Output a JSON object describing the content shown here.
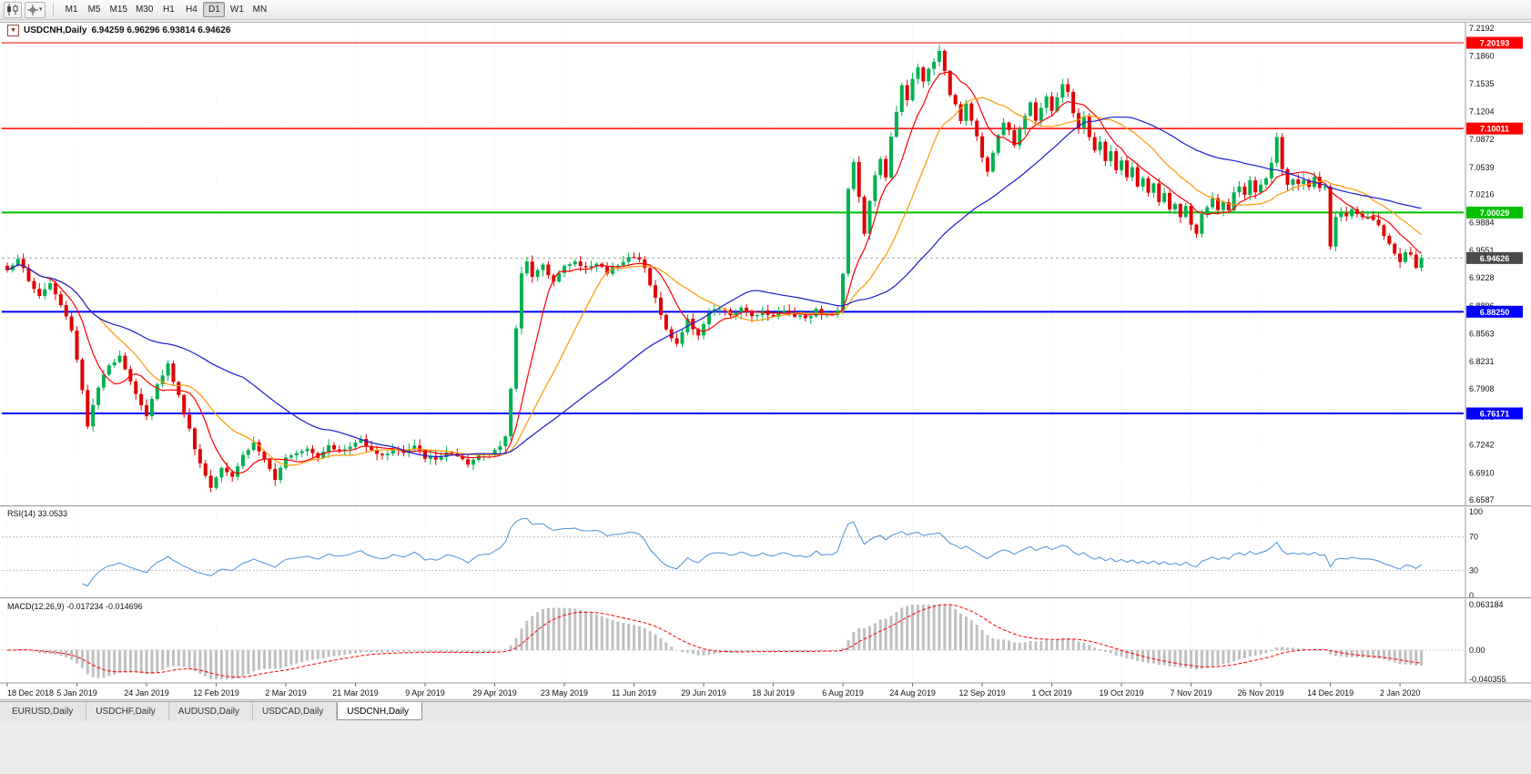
{
  "colors": {
    "window_bg": "#ececec",
    "chart_bg": "#ffffff",
    "grid": "#ededed",
    "candle_up": "#00b050",
    "candle_down": "#e00000",
    "current_line": "#aaaaaa",
    "current_tag": "#4a4a4a"
  },
  "toolbar": {
    "timeframes": [
      "M1",
      "M5",
      "M15",
      "M30",
      "H1",
      "H4",
      "D1",
      "W1",
      "MN"
    ],
    "active_timeframe": "D1",
    "icons": [
      "candlestick-chart-icon",
      "crosshair-icon",
      "dropdown-caret-icon"
    ]
  },
  "chart_header": {
    "symbol": "USDCNH,Daily",
    "ohlc": "6.94259 6.96296 6.93814 6.94626",
    "open": "6.94259",
    "high": "6.96296",
    "low": "6.93814",
    "close": "6.94626"
  },
  "tabs": {
    "items": [
      "EURUSD,Daily",
      "USDCHF,Daily",
      "AUDUSD,Daily",
      "USDCAD,Daily",
      "USDCNH,Daily"
    ],
    "active_index": 4
  },
  "chart_data": {
    "type": "candlestick",
    "symbol": "USDCNH",
    "timeframe": "Daily",
    "price_axis": {
      "labels": [
        "7.2192",
        "7.1860",
        "7.1535",
        "7.1204",
        "7.0872",
        "7.0539",
        "7.0216",
        "6.9884",
        "6.9551",
        "6.9228",
        "6.8896",
        "6.8563",
        "6.8231",
        "6.7908",
        "6.7575",
        "6.7242",
        "6.6910",
        "6.6587"
      ],
      "min": 6.66003,
      "max": 7.22032
    },
    "x_labels": [
      "18 Dec 2018",
      "5 Jan 2019",
      "24 Jan 2019",
      "12 Feb 2019",
      "2 Mar 2019",
      "21 Mar 2019",
      "9 Apr 2019",
      "29 Apr 2019",
      "23 May 2019",
      "11 Jun 2019",
      "29 Jun 2019",
      "18 Jul 2019",
      "6 Aug 2019",
      "24 Aug 2019",
      "12 Sep 2019",
      "1 Oct 2019",
      "19 Oct 2019",
      "7 Nov 2019",
      "26 Nov 2019",
      "14 Dec 2019",
      "2 Jan 2020"
    ],
    "hlines": [
      {
        "price": 7.20193,
        "label": "7.20193",
        "color": "#ff0000",
        "width": 1
      },
      {
        "price": 7.10011,
        "label": "7.10011",
        "color": "#ff0000",
        "width": 1.5
      },
      {
        "price": 7.00029,
        "label": "7.00029",
        "color": "#00c000",
        "width": 2
      },
      {
        "price": 6.8825,
        "label": "6.88250",
        "color": "#0000ff",
        "width": 2
      },
      {
        "price": 6.76171,
        "label": "6.76171",
        "color": "#0000ff",
        "width": 2
      }
    ],
    "current_price": {
      "value": 6.94626,
      "label": "6.94626"
    },
    "price_anchors": [
      [
        0,
        6.932
      ],
      [
        2,
        6.947
      ],
      [
        4,
        6.918
      ],
      [
        6,
        6.902
      ],
      [
        8,
        6.916
      ],
      [
        10,
        6.89
      ],
      [
        12,
        6.862
      ],
      [
        14,
        6.79
      ],
      [
        15,
        6.748
      ],
      [
        17,
        6.792
      ],
      [
        19,
        6.818
      ],
      [
        21,
        6.832
      ],
      [
        23,
        6.8
      ],
      [
        25,
        6.772
      ],
      [
        26,
        6.757
      ],
      [
        28,
        6.798
      ],
      [
        30,
        6.82
      ],
      [
        32,
        6.782
      ],
      [
        34,
        6.742
      ],
      [
        36,
        6.702
      ],
      [
        38,
        6.674
      ],
      [
        40,
        6.7
      ],
      [
        42,
        6.688
      ],
      [
        44,
        6.712
      ],
      [
        46,
        6.727
      ],
      [
        48,
        6.707
      ],
      [
        50,
        6.68
      ],
      [
        52,
        6.712
      ],
      [
        54,
        6.716
      ],
      [
        56,
        6.722
      ],
      [
        58,
        6.71
      ],
      [
        60,
        6.726
      ],
      [
        62,
        6.716
      ],
      [
        64,
        6.722
      ],
      [
        66,
        6.731
      ],
      [
        68,
        6.72
      ],
      [
        70,
        6.71
      ],
      [
        72,
        6.721
      ],
      [
        74,
        6.714
      ],
      [
        76,
        6.722
      ],
      [
        78,
        6.71
      ],
      [
        80,
        6.706
      ],
      [
        82,
        6.716
      ],
      [
        84,
        6.709
      ],
      [
        86,
        6.7
      ],
      [
        88,
        6.712
      ],
      [
        90,
        6.716
      ],
      [
        92,
        6.722
      ],
      [
        93,
        6.732
      ],
      [
        94,
        6.792
      ],
      [
        95,
        6.862
      ],
      [
        96,
        6.93
      ],
      [
        97,
        6.944
      ],
      [
        98,
        6.924
      ],
      [
        100,
        6.936
      ],
      [
        102,
        6.921
      ],
      [
        104,
        6.936
      ],
      [
        106,
        6.941
      ],
      [
        108,
        6.934
      ],
      [
        110,
        6.94
      ],
      [
        112,
        6.93
      ],
      [
        114,
        6.94
      ],
      [
        116,
        6.948
      ],
      [
        118,
        6.944
      ],
      [
        119,
        6.934
      ],
      [
        121,
        6.898
      ],
      [
        123,
        6.86
      ],
      [
        125,
        6.845
      ],
      [
        127,
        6.872
      ],
      [
        129,
        6.856
      ],
      [
        131,
        6.88
      ],
      [
        133,
        6.886
      ],
      [
        135,
        6.879
      ],
      [
        137,
        6.885
      ],
      [
        139,
        6.878
      ],
      [
        141,
        6.884
      ],
      [
        143,
        6.878
      ],
      [
        145,
        6.883
      ],
      [
        147,
        6.879
      ],
      [
        149,
        6.876
      ],
      [
        151,
        6.884
      ],
      [
        153,
        6.878
      ],
      [
        155,
        6.882
      ],
      [
        156,
        6.93
      ],
      [
        157,
        7.03
      ],
      [
        158,
        7.062
      ],
      [
        159,
        7.018
      ],
      [
        160,
        6.976
      ],
      [
        161,
        7.012
      ],
      [
        162,
        7.046
      ],
      [
        163,
        7.062
      ],
      [
        164,
        7.04
      ],
      [
        165,
        7.092
      ],
      [
        166,
        7.122
      ],
      [
        167,
        7.15
      ],
      [
        168,
        7.132
      ],
      [
        169,
        7.158
      ],
      [
        170,
        7.172
      ],
      [
        171,
        7.156
      ],
      [
        172,
        7.17
      ],
      [
        173,
        7.182
      ],
      [
        174,
        7.19
      ],
      [
        175,
        7.166
      ],
      [
        176,
        7.142
      ],
      [
        177,
        7.13
      ],
      [
        178,
        7.112
      ],
      [
        179,
        7.13
      ],
      [
        180,
        7.112
      ],
      [
        181,
        7.09
      ],
      [
        182,
        7.066
      ],
      [
        183,
        7.046
      ],
      [
        184,
        7.072
      ],
      [
        185,
        7.092
      ],
      [
        186,
        7.11
      ],
      [
        187,
        7.096
      ],
      [
        188,
        7.082
      ],
      [
        189,
        7.1
      ],
      [
        190,
        7.116
      ],
      [
        191,
        7.13
      ],
      [
        192,
        7.112
      ],
      [
        193,
        7.126
      ],
      [
        194,
        7.14
      ],
      [
        195,
        7.122
      ],
      [
        196,
        7.136
      ],
      [
        197,
        7.15
      ],
      [
        198,
        7.144
      ],
      [
        199,
        7.12
      ],
      [
        200,
        7.102
      ],
      [
        201,
        7.112
      ],
      [
        202,
        7.09
      ],
      [
        203,
        7.072
      ],
      [
        204,
        7.086
      ],
      [
        205,
        7.062
      ],
      [
        206,
        7.072
      ],
      [
        207,
        7.052
      ],
      [
        208,
        7.062
      ],
      [
        209,
        7.042
      ],
      [
        210,
        7.052
      ],
      [
        211,
        7.032
      ],
      [
        212,
        7.042
      ],
      [
        213,
        7.022
      ],
      [
        214,
        7.032
      ],
      [
        215,
        7.012
      ],
      [
        216,
        7.022
      ],
      [
        217,
        7.002
      ],
      [
        218,
        7.012
      ],
      [
        219,
        6.996
      ],
      [
        220,
        7.006
      ],
      [
        221,
        6.986
      ],
      [
        222,
        6.976
      ],
      [
        223,
        6.996
      ],
      [
        224,
        7.006
      ],
      [
        225,
        7.016
      ],
      [
        226,
        7.006
      ],
      [
        227,
        7.012
      ],
      [
        228,
        7.002
      ],
      [
        229,
        7.022
      ],
      [
        230,
        7.032
      ],
      [
        231,
        7.022
      ],
      [
        232,
        7.036
      ],
      [
        233,
        7.026
      ],
      [
        234,
        7.032
      ],
      [
        235,
        7.04
      ],
      [
        236,
        7.06
      ],
      [
        237,
        7.09
      ],
      [
        238,
        7.05
      ],
      [
        239,
        7.036
      ],
      [
        240,
        7.042
      ],
      [
        241,
        7.032
      ],
      [
        242,
        7.036
      ],
      [
        243,
        7.03
      ],
      [
        244,
        7.04
      ],
      [
        245,
        7.03
      ],
      [
        246,
        7.028
      ],
      [
        247,
        6.962
      ],
      [
        248,
        6.996
      ],
      [
        249,
        7.002
      ],
      [
        250,
        6.996
      ],
      [
        251,
        7.004
      ],
      [
        252,
        6.999
      ],
      [
        253,
        6.992
      ],
      [
        254,
        6.996
      ],
      [
        255,
        6.99
      ],
      [
        256,
        6.984
      ],
      [
        257,
        6.974
      ],
      [
        258,
        6.964
      ],
      [
        259,
        6.954
      ],
      [
        260,
        6.944
      ],
      [
        261,
        6.956
      ],
      [
        262,
        6.95
      ],
      [
        263,
        6.934
      ],
      [
        264,
        6.94626
      ]
    ],
    "ma_lines": [
      {
        "period": 8,
        "color": "#ff0000"
      },
      {
        "period": 18,
        "color": "#ff9900"
      },
      {
        "period": 45,
        "color": "#1a1acd"
      }
    ],
    "rsi": {
      "display": "RSI(14) 33.0533",
      "period": 14,
      "value": "33.0533",
      "levels": [
        70,
        30
      ],
      "axis_labels": [
        "100",
        "70",
        "30",
        "0"
      ],
      "color": "#4a90d9"
    },
    "macd": {
      "display": "MACD(12,26,9) -0.017234 -0.014696",
      "fast": 12,
      "slow": 26,
      "signal": 9,
      "values": "-0.017234 -0.014696",
      "axis_max": 0.063184,
      "axis_min": -0.040355,
      "axis_labels": [
        {
          "text": "0.063184",
          "value": 0.063184
        },
        {
          "text": "0.00",
          "value": 0
        },
        {
          "text": "-0.040355",
          "value": -0.040355
        }
      ],
      "hist_color": "#c0c0c0",
      "signal_color": "#ff0000"
    }
  }
}
